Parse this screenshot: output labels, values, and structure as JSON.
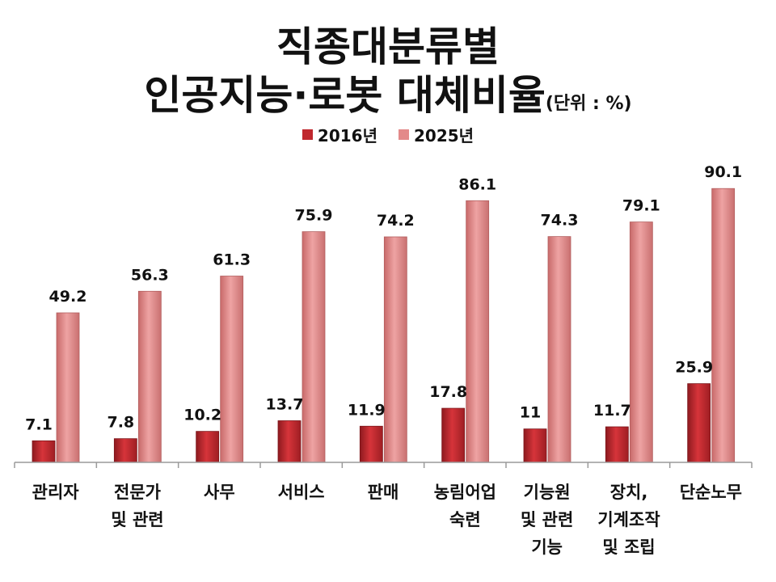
{
  "title": [
    "직종대분류별",
    "인공지능·로봇 대체비율"
  ],
  "unit_note": "(단위 : %)",
  "colors": {
    "series_2016": "#c0282e",
    "series_2025": "#e38a8a"
  },
  "chart_data": {
    "type": "bar",
    "categories": [
      "관리자",
      "전문가\n및 관련",
      "사무",
      "서비스",
      "판매",
      "농림어업\n숙련",
      "기능원\n및 관련\n기능",
      "장치,\n기계조작\n및 조립",
      "단순노무"
    ],
    "series": [
      {
        "name": "2016년",
        "values": [
          7.1,
          7.8,
          10.2,
          13.7,
          11.9,
          17.8,
          11,
          11.7,
          25.9
        ]
      },
      {
        "name": "2025년",
        "values": [
          49.2,
          56.3,
          61.3,
          75.9,
          74.2,
          86.1,
          74.3,
          79.1,
          90.1
        ]
      }
    ],
    "value_labels": [
      [
        "7.1",
        "7.8",
        "10.2",
        "13.7",
        "11.9",
        "17.8",
        "11",
        "11.7",
        "25.9"
      ],
      [
        "49.2",
        "56.3",
        "61.3",
        "75.9",
        "74.2",
        "86.1",
        "74.3",
        "79.1",
        "90.1"
      ]
    ],
    "ylim": [
      0,
      100
    ],
    "legend_position": "top-center",
    "grid": false
  }
}
